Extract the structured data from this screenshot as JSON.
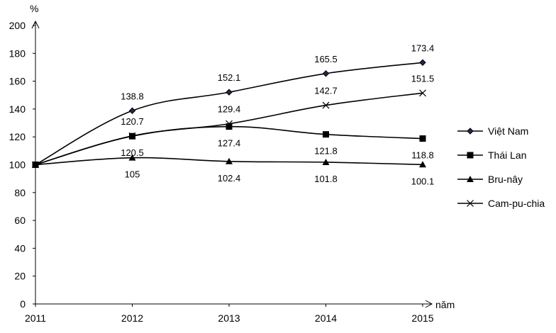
{
  "chart_data": {
    "type": "line",
    "y_unit_label": "%",
    "x_unit_label": "năm",
    "categories": [
      "2011",
      "2012",
      "2013",
      "2014",
      "2015"
    ],
    "ylim": [
      0,
      200
    ],
    "yticks": [
      0,
      20,
      40,
      60,
      80,
      100,
      120,
      140,
      160,
      180,
      200
    ],
    "grid": false,
    "legend_position": "right",
    "series": [
      {
        "name": "Việt Nam",
        "marker": "diamond",
        "values": [
          100,
          138.8,
          152.1,
          165.5,
          173.4
        ],
        "labels": [
          "",
          "138.8",
          "152.1",
          "165.5",
          "173.4"
        ],
        "label_pos": [
          "",
          "above",
          "above",
          "above",
          "above"
        ]
      },
      {
        "name": "Thái Lan",
        "marker": "square",
        "values": [
          100,
          120.5,
          127.4,
          121.8,
          118.8
        ],
        "labels": [
          "",
          "120.5",
          "127.4",
          "121.8",
          "118.8"
        ],
        "label_pos": [
          "",
          "below",
          "below",
          "below",
          "below"
        ]
      },
      {
        "name": "Bru-nây",
        "marker": "triangle",
        "values": [
          100,
          105,
          102.4,
          101.8,
          100.1
        ],
        "labels": [
          "",
          "105",
          "102.4",
          "101.8",
          "100.1"
        ],
        "label_pos": [
          "",
          "below",
          "below",
          "below",
          "below"
        ]
      },
      {
        "name": "Cam-pu-chia",
        "marker": "x",
        "values": [
          100,
          120.7,
          129.4,
          142.7,
          151.5
        ],
        "labels": [
          "",
          "120.7",
          "129.4",
          "142.7",
          "151.5"
        ],
        "label_pos": [
          "",
          "above",
          "above",
          "above",
          "above"
        ]
      }
    ],
    "colors": {
      "line": "#000000",
      "marker_fill": "#000000",
      "diamond_fill": "#1f2a44"
    }
  }
}
